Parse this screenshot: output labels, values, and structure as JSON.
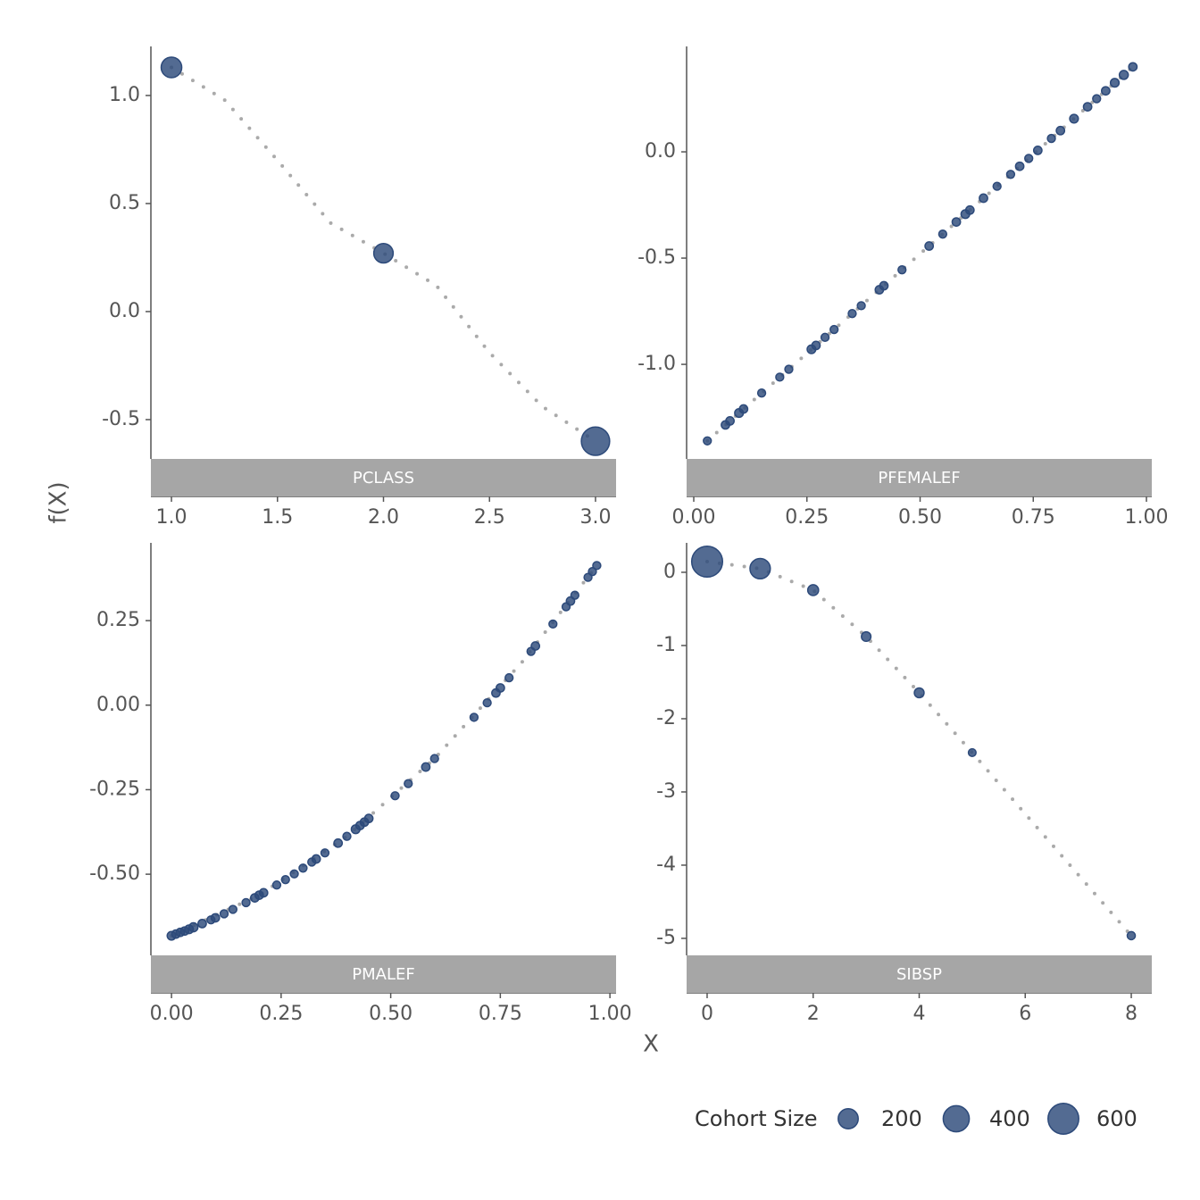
{
  "axis_labels": {
    "x": "X",
    "y": "f(X)"
  },
  "legend": {
    "title": "Cohort Size",
    "sizes": [
      200,
      400,
      600
    ],
    "color": "#2d4a7a"
  },
  "chart_data": [
    {
      "type": "scatter",
      "title": "PCLASS",
      "color": "#2d4a7a",
      "fit_color": "#aaaaaa",
      "x": [
        1,
        2,
        3
      ],
      "values": [
        1.13,
        0.27,
        -0.6
      ],
      "sizes": [
        216,
        184,
        491
      ],
      "fit": {
        "x": [
          1,
          1.25,
          1.5,
          1.75,
          2,
          2.25,
          2.5,
          2.75,
          3
        ],
        "values": [
          1.13,
          0.98,
          0.7,
          0.41,
          0.27,
          0.12,
          -0.19,
          -0.44,
          -0.6
        ]
      },
      "xlim": [
        0.903,
        3.097
      ],
      "ylim": [
        -0.682,
        1.227
      ],
      "xticks": [
        {
          "value": 1,
          "label": "1.0"
        },
        1.5,
        {
          "value": 2,
          "label": "2.0"
        },
        2.5,
        {
          "value": 3,
          "label": "3.0"
        }
      ],
      "yticks": [
        {
          "value": 1,
          "label": "1.0"
        },
        0.5,
        {
          "value": 0,
          "label": "0.0"
        },
        -0.5
      ]
    },
    {
      "type": "scatter",
      "title": "PFEMALEF",
      "color": "#2d4a7a",
      "fit_color": "#aaaaaa",
      "x": [
        0.03,
        0.07,
        0.08,
        0.1,
        0.11,
        0.15,
        0.19,
        0.21,
        0.26,
        0.27,
        0.29,
        0.31,
        0.35,
        0.37,
        0.41,
        0.42,
        0.46,
        0.52,
        0.55,
        0.58,
        0.6,
        0.61,
        0.64,
        0.67,
        0.7,
        0.72,
        0.74,
        0.76,
        0.79,
        0.81,
        0.84,
        0.87,
        0.89,
        0.91,
        0.93,
        0.95,
        0.97
      ],
      "values": [
        -1.36,
        -1.285,
        -1.266,
        -1.229,
        -1.21,
        -1.135,
        -1.06,
        -1.023,
        -0.929,
        -0.911,
        -0.873,
        -0.836,
        -0.761,
        -0.724,
        -0.649,
        -0.63,
        -0.555,
        -0.443,
        -0.387,
        -0.33,
        -0.293,
        -0.274,
        -0.218,
        -0.162,
        -0.106,
        -0.068,
        -0.031,
        0.007,
        0.063,
        0.1,
        0.156,
        0.212,
        0.25,
        0.287,
        0.325,
        0.362,
        0.4
      ],
      "sizes": [
        6,
        8,
        8,
        10,
        8,
        6,
        6,
        6,
        10,
        8,
        6,
        6,
        6,
        6,
        8,
        8,
        6,
        8,
        6,
        8,
        10,
        8,
        8,
        6,
        6,
        8,
        6,
        8,
        6,
        8,
        10,
        8,
        6,
        8,
        10,
        12,
        8
      ],
      "fit": {
        "x": [
          0.03,
          0.97
        ],
        "values": [
          -1.36,
          0.4
        ]
      },
      "xlim": [
        -0.0158,
        1.0118
      ],
      "ylim": [
        -1.445,
        0.496
      ],
      "xticks": [
        {
          "value": 0,
          "label": "0.00"
        },
        0.25,
        {
          "value": 0.5,
          "label": "0.50"
        },
        0.75,
        {
          "value": 1,
          "label": "1.00"
        }
      ],
      "yticks": [
        {
          "value": 0,
          "label": "0.0"
        },
        -0.5,
        {
          "value": -1,
          "label": "-1.0"
        }
      ]
    },
    {
      "type": "scatter",
      "title": "PMALEF",
      "color": "#2d4a7a",
      "fit_color": "#aaaaaa",
      "x": [
        0,
        0.01,
        0.02,
        0.03,
        0.04,
        0.05,
        0.07,
        0.09,
        0.1,
        0.12,
        0.14,
        0.17,
        0.19,
        0.2,
        0.21,
        0.24,
        0.26,
        0.28,
        0.3,
        0.32,
        0.33,
        0.35,
        0.38,
        0.4,
        0.42,
        0.43,
        0.44,
        0.45,
        0.51,
        0.54,
        0.58,
        0.6,
        0.69,
        0.72,
        0.74,
        0.75,
        0.77,
        0.82,
        0.83,
        0.87,
        0.9,
        0.91,
        0.92,
        0.95,
        0.96,
        0.97
      ],
      "values": [
        -0.682,
        -0.677,
        -0.672,
        -0.668,
        -0.663,
        -0.657,
        -0.646,
        -0.635,
        -0.629,
        -0.617,
        -0.604,
        -0.584,
        -0.57,
        -0.562,
        -0.555,
        -0.532,
        -0.516,
        -0.499,
        -0.482,
        -0.464,
        -0.455,
        -0.437,
        -0.408,
        -0.388,
        -0.367,
        -0.356,
        -0.346,
        -0.335,
        -0.268,
        -0.232,
        -0.183,
        -0.158,
        -0.036,
        0.007,
        0.036,
        0.051,
        0.081,
        0.159,
        0.175,
        0.24,
        0.291,
        0.308,
        0.325,
        0.378,
        0.395,
        0.413
      ],
      "sizes": [
        10,
        8,
        8,
        8,
        10,
        12,
        8,
        6,
        8,
        6,
        6,
        6,
        8,
        8,
        8,
        6,
        6,
        6,
        6,
        6,
        8,
        6,
        8,
        6,
        10,
        8,
        8,
        8,
        6,
        6,
        8,
        6,
        6,
        6,
        8,
        8,
        6,
        6,
        8,
        6,
        6,
        8,
        6,
        6,
        6,
        6
      ],
      "fit": {
        "x": [
          0,
          0.2,
          0.4,
          0.6,
          0.8,
          0.97
        ],
        "values": [
          -0.682,
          -0.562,
          -0.388,
          -0.158,
          0.128,
          0.413
        ]
      },
      "xlim": [
        -0.047,
        1.014
      ],
      "ylim": [
        -0.74,
        0.48
      ],
      "xticks": [
        {
          "value": 0,
          "label": "0.00"
        },
        0.25,
        {
          "value": 0.5,
          "label": "0.50"
        },
        0.75,
        {
          "value": 1,
          "label": "1.00"
        }
      ],
      "yticks": [
        0.25,
        {
          "value": 0,
          "label": "0.00"
        },
        -0.25,
        {
          "value": -0.5,
          "label": "-0.50"
        }
      ]
    },
    {
      "type": "scatter",
      "title": "SIBSP",
      "color": "#2d4a7a",
      "fit_color": "#aaaaaa",
      "x": [
        0,
        1,
        2,
        3,
        4,
        5,
        8
      ],
      "values": [
        0.146,
        0.05,
        -0.244,
        -0.878,
        -1.646,
        -2.463,
        -4.963
      ],
      "sizes": [
        608,
        209,
        28,
        16,
        18,
        5,
        7
      ],
      "fit": {
        "x": [
          0,
          1,
          2,
          3,
          4,
          5,
          6,
          7,
          8
        ],
        "values": [
          0.146,
          0.05,
          -0.244,
          -0.878,
          -1.646,
          -2.463,
          -3.3,
          -4.13,
          -4.963
        ]
      },
      "xlim": [
        -0.387,
        8.387
      ],
      "ylim": [
        -5.232,
        0.402
      ],
      "xticks": [
        0,
        2,
        4,
        6,
        8
      ],
      "yticks": [
        0,
        -1,
        -2,
        -3,
        -4,
        -5
      ]
    }
  ]
}
